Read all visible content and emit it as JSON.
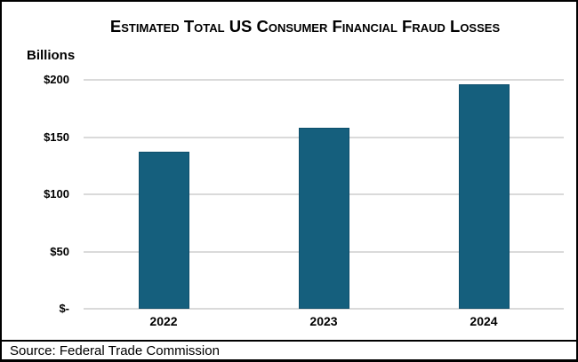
{
  "chart_data": {
    "type": "bar",
    "title": "Estimated Total US Consumer Financial Fraud Losses",
    "unit_label": "Billions",
    "categories": [
      "2022",
      "2023",
      "2024"
    ],
    "values": [
      137,
      158,
      196
    ],
    "ylim": [
      0,
      200
    ],
    "y_ticks": [
      {
        "value": 0,
        "label": "$-"
      },
      {
        "value": 50,
        "label": "$50"
      },
      {
        "value": 100,
        "label": "$100"
      },
      {
        "value": 150,
        "label": "$150"
      },
      {
        "value": 200,
        "label": "$200"
      }
    ],
    "grid": true,
    "legend": "none",
    "xlabel": "",
    "ylabel": "Billions",
    "bar_color": "#155F7D",
    "bar_border_color": "#0E4F6C",
    "gridline_color": "#DADADA",
    "text_color": "#000000"
  },
  "source": {
    "text": "Source: Federal Trade Commission"
  }
}
